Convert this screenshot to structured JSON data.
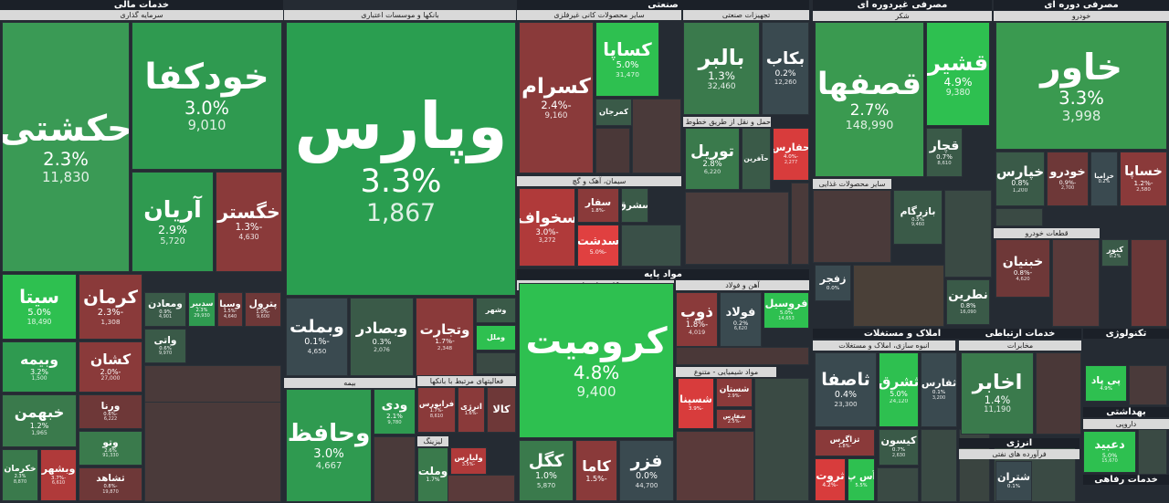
{
  "headers": [
    {
      "label": "خدمات مالی"
    },
    {
      "label": "سرمایه گذاری"
    },
    {
      "label": "بانکها و موسسات اعتباری"
    },
    {
      "label": "بیمه"
    },
    {
      "label": "فعالیتهای مرتبط با بانکها"
    },
    {
      "label": "لیزینگ"
    },
    {
      "label": "صنعتی"
    },
    {
      "label": "سایر محصولات کانی غیرفلزی"
    },
    {
      "label": "تجهیزات صنعتی"
    },
    {
      "label": "حمل و نقل از طریق خطوط راه اهن"
    },
    {
      "label": "سیمان، آهک و گچ"
    },
    {
      "label": "مواد پایه"
    },
    {
      "label": "کانی های فلزی"
    },
    {
      "label": "آهن و فولاد"
    },
    {
      "label": "مواد شیمیایی - متنوع"
    },
    {
      "label": "مصرفی غیردوره ای"
    },
    {
      "label": "شکر"
    },
    {
      "label": "سایر محصولات غذایی"
    },
    {
      "label": "املاک و مستغلات"
    },
    {
      "label": "انبوه سازی، املاک و مستغلات"
    },
    {
      "label": "مصرفی دوره ای"
    },
    {
      "label": "خودرو"
    },
    {
      "label": "قطعات خودرو"
    },
    {
      "label": "خدمات ارتباطی"
    },
    {
      "label": "مخابرات"
    },
    {
      "label": "تکنولوژی"
    },
    {
      "label": "بهداشتی"
    },
    {
      "label": "داروپی"
    },
    {
      "label": "انرژی"
    },
    {
      "label": "فرآورده های نفتی"
    },
    {
      "label": "خدمات رفاهی"
    }
  ],
  "tiles": [
    {
      "name": "حکشتی",
      "change": "2.3%",
      "volume": "11,830"
    },
    {
      "name": "خودکفا",
      "change": "3.0%",
      "volume": "9,010"
    },
    {
      "name": "آریان",
      "change": "2.9%",
      "volume": "5,720"
    },
    {
      "name": "خگستر",
      "change": "-1.3%",
      "volume": "4,630"
    },
    {
      "name": "سیتا",
      "change": "5.0%",
      "volume": "18,490"
    },
    {
      "name": "کرمان",
      "change": "-2.3%",
      "volume": "1,308"
    },
    {
      "name": "وبیمه",
      "change": "3.2%",
      "volume": "1,500"
    },
    {
      "name": "کشان",
      "change": "-2.0%",
      "volume": "27,000"
    },
    {
      "name": "خبهمن",
      "change": "1.2%",
      "volume": "1,965"
    },
    {
      "name": "ورنا",
      "change": "-0.6%",
      "volume": "6,222"
    },
    {
      "name": "خکرمان",
      "change": "2.3%",
      "volume": "8,870"
    },
    {
      "name": "وبشهر",
      "change": "-3.7%",
      "volume": "6,610"
    },
    {
      "name": "وتو",
      "change": "2.6%",
      "volume": "91,330"
    },
    {
      "name": "ثشاهد",
      "change": "-0.8%",
      "volume": "19,870"
    },
    {
      "name": "ومعادن",
      "change": "0.9%",
      "volume": "4,901"
    },
    {
      "name": "سدبیر",
      "change": "2.3%",
      "volume": "29,930"
    },
    {
      "name": "وسپا",
      "change": "-1.5%",
      "volume": "4,640"
    },
    {
      "name": "پترول",
      "change": "-1.0%",
      "volume": "9,600"
    },
    {
      "name": "واتی",
      "change": "0.6%",
      "volume": "9,970"
    },
    {
      "name": "وپارس",
      "change": "3.3%",
      "volume": "1,867"
    },
    {
      "name": "وبملت",
      "change": "-0.1%",
      "volume": "4,650"
    },
    {
      "name": "وبصادر",
      "change": "0.3%",
      "volume": "2,076"
    },
    {
      "name": "وتجارت",
      "change": "-1.7%",
      "volume": "2,348"
    },
    {
      "name": "وشهر"
    },
    {
      "name": "وملل"
    },
    {
      "name": "وحافظ",
      "change": "3.0%",
      "volume": "4,667"
    },
    {
      "name": "ودی",
      "change": "2.1%",
      "volume": "9,780"
    },
    {
      "name": "فرابورس",
      "change": "-1.7%",
      "volume": "8,610"
    },
    {
      "name": "انرژی",
      "change": "-1.6%"
    },
    {
      "name": "کالا"
    },
    {
      "name": "وملت",
      "change": "1.7%"
    },
    {
      "name": "ولیارس",
      "change": "-3.5%"
    },
    {
      "name": "کسرام",
      "change": "-2.4%",
      "volume": "9,160"
    },
    {
      "name": "کساپا",
      "change": "5.0%",
      "volume": "31,470"
    },
    {
      "name": "کمرجان"
    },
    {
      "name": "بالبر",
      "change": "1.3%",
      "volume": "32,460"
    },
    {
      "name": "بکاب",
      "change": "0.2%",
      "volume": "12,260"
    },
    {
      "name": "توریل",
      "change": "2.8%",
      "volume": "6,220"
    },
    {
      "name": "حآفرین"
    },
    {
      "name": "حفارس",
      "change": "-4.0%",
      "volume": "2,277"
    },
    {
      "name": "سخواف",
      "change": "-3.0%",
      "volume": "3,272"
    },
    {
      "name": "سفار",
      "change": "-1.8%"
    },
    {
      "name": "سشرق"
    },
    {
      "name": "سدشت",
      "change": "-5.0%"
    },
    {
      "name": "کرومیت",
      "change": "4.8%",
      "volume": "9,400"
    },
    {
      "name": "کگل",
      "change": "1.0%",
      "volume": "5,870"
    },
    {
      "name": "کاما",
      "change": "-1.5%"
    },
    {
      "name": "فزر",
      "change": "0.0%",
      "volume": "44,700"
    },
    {
      "name": "ذوب",
      "change": "-1.8%",
      "volume": "4,019"
    },
    {
      "name": "فولاد",
      "change": "0.2%",
      "volume": "6,620"
    },
    {
      "name": "فروسیل",
      "change": "5.0%",
      "volume": "14,653"
    },
    {
      "name": "شسپنا",
      "change": "-3.9%"
    },
    {
      "name": "شستان",
      "change": "-2.9%"
    },
    {
      "name": "شفارس",
      "change": "-2.5%"
    },
    {
      "name": "قصفها",
      "change": "2.7%",
      "volume": "148,990"
    },
    {
      "name": "قشیر",
      "change": "4.9%",
      "volume": "9,380"
    },
    {
      "name": "قچار",
      "change": "0.7%",
      "volume": "8,610"
    },
    {
      "name": "بازرگام",
      "change": "0.5%",
      "volume": "9,460"
    },
    {
      "name": "زفجر",
      "change": "0.0%"
    },
    {
      "name": "نطرین",
      "change": "0.8%",
      "volume": "16,090"
    },
    {
      "name": "ثاصفا",
      "change": "0.4%",
      "volume": "23,300"
    },
    {
      "name": "ثشرق",
      "change": "5.0%",
      "volume": "24,120"
    },
    {
      "name": "ثفارس",
      "change": "0.1%",
      "volume": "3,200"
    },
    {
      "name": "ثزاگرس",
      "change": "-1.8%"
    },
    {
      "name": "ثروت",
      "change": "-4.2%"
    },
    {
      "name": "آس پ",
      "change": "5.5%"
    },
    {
      "name": "کیسون",
      "change": "0.7%",
      "volume": "2,630"
    },
    {
      "name": "خاور",
      "change": "3.3%",
      "volume": "3,998"
    },
    {
      "name": "خپارس",
      "change": "0.8%",
      "volume": "1,200"
    },
    {
      "name": "خودرو",
      "change": "-0.9%",
      "volume": "2,700"
    },
    {
      "name": "خزامیا",
      "change": "0.2%"
    },
    {
      "name": "خساپا",
      "change": "-1.2%",
      "volume": "2,580"
    },
    {
      "name": "خبنیان",
      "change": "-0.8%",
      "volume": "4,620"
    },
    {
      "name": "کنور",
      "change": "0.2%"
    },
    {
      "name": "اخابر",
      "change": "1.4%",
      "volume": "11,190"
    },
    {
      "name": "پی پاد",
      "change": "4.9%"
    },
    {
      "name": "دعبید",
      "change": "5.0%",
      "volume": "15,670"
    },
    {
      "name": "شتران",
      "change": "0.1%"
    }
  ]
}
